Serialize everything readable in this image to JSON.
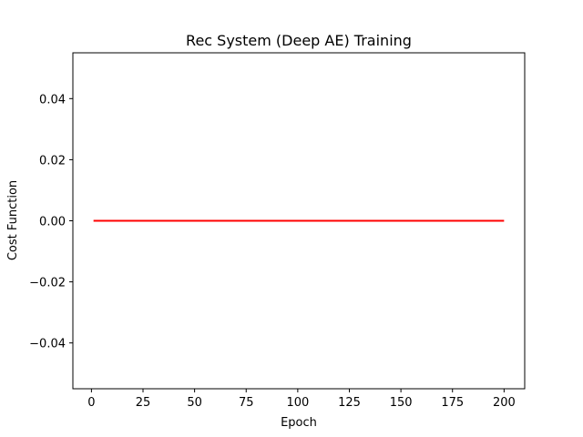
{
  "chart_data": {
    "type": "line",
    "title": "Rec System (Deep AE) Training",
    "xlabel": "Epoch",
    "ylabel": "Cost Function",
    "xlim": [
      -9,
      210
    ],
    "ylim": [
      -0.055,
      0.055
    ],
    "xticks": [
      0,
      25,
      50,
      75,
      100,
      125,
      150,
      175,
      200
    ],
    "xtick_labels": [
      "0",
      "25",
      "50",
      "75",
      "100",
      "125",
      "150",
      "175",
      "200"
    ],
    "yticks": [
      -0.04,
      -0.02,
      0.0,
      0.02,
      0.04
    ],
    "ytick_labels": [
      "−0.04",
      "−0.02",
      "0.00",
      "0.02",
      "0.04"
    ],
    "grid": false,
    "legend": "none",
    "series": [
      {
        "color": "#ff0000",
        "x": [
          1,
          200
        ],
        "y": [
          0.0,
          0.0
        ]
      }
    ]
  }
}
